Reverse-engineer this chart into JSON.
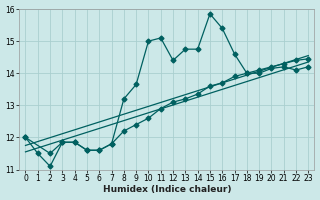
{
  "xlabel": "Humidex (Indice chaleur)",
  "bg_color": "#cce8e8",
  "grid_color": "#aacfcf",
  "line_color": "#006060",
  "xlim": [
    -0.5,
    23.5
  ],
  "ylim": [
    11,
    16
  ],
  "xticks": [
    0,
    1,
    2,
    3,
    4,
    5,
    6,
    7,
    8,
    9,
    10,
    11,
    12,
    13,
    14,
    15,
    16,
    17,
    18,
    19,
    20,
    21,
    22,
    23
  ],
  "yticks": [
    11,
    12,
    13,
    14,
    15,
    16
  ],
  "curve1_x": [
    0,
    1,
    2,
    3,
    4,
    5,
    6,
    7,
    8,
    9,
    10,
    11,
    12,
    13,
    14,
    15,
    16,
    17,
    18,
    19,
    20,
    21,
    22,
    23
  ],
  "curve1_y": [
    12.0,
    11.5,
    11.1,
    11.85,
    11.85,
    11.6,
    11.6,
    11.8,
    13.2,
    13.65,
    15.0,
    15.1,
    14.4,
    14.75,
    14.75,
    15.85,
    15.4,
    14.6,
    14.0,
    14.0,
    14.15,
    14.2,
    14.1,
    14.2
  ],
  "curve2_x": [
    0,
    2,
    3,
    4,
    5,
    6,
    7,
    8,
    9,
    10,
    11,
    12,
    13,
    14,
    15,
    16,
    17,
    18,
    19,
    20,
    21,
    22,
    23
  ],
  "curve2_y": [
    12.0,
    11.5,
    11.85,
    11.85,
    11.6,
    11.6,
    11.8,
    12.2,
    12.4,
    12.6,
    12.9,
    13.1,
    13.2,
    13.35,
    13.6,
    13.7,
    13.9,
    14.0,
    14.1,
    14.2,
    14.3,
    14.4,
    14.45
  ],
  "curve3_x": [
    0,
    23
  ],
  "curve3_y": [
    11.55,
    14.35
  ],
  "curve4_x": [
    0,
    23
  ],
  "curve4_y": [
    11.75,
    14.55
  ]
}
